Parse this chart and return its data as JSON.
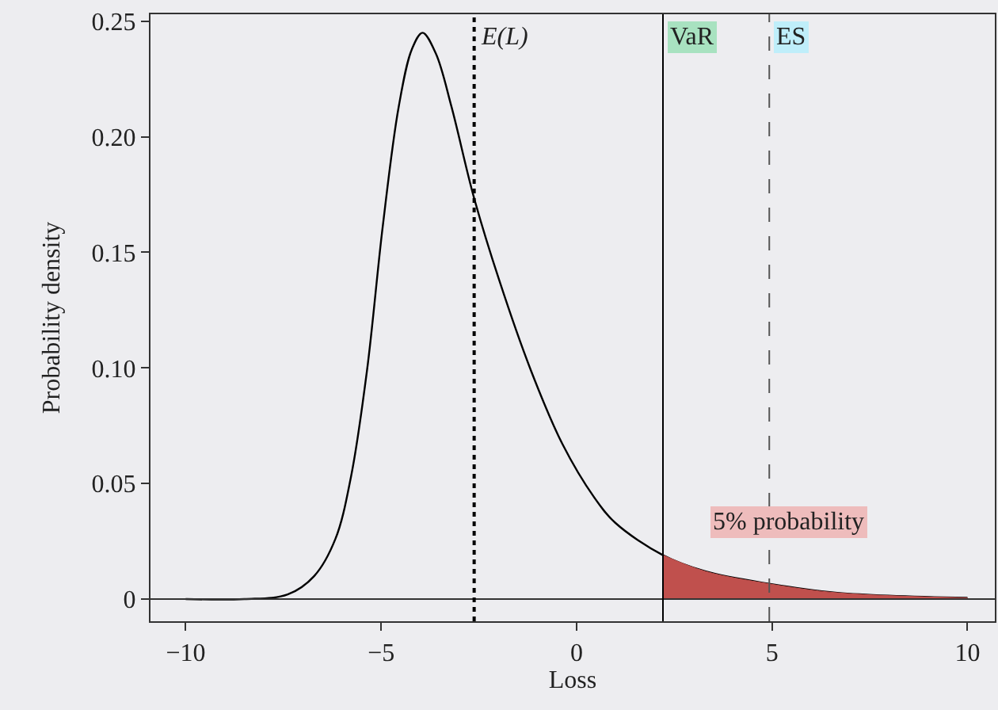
{
  "chart_data": {
    "type": "line",
    "xlabel": "Loss",
    "ylabel": "Probability density",
    "series": [
      {
        "color": "#000000",
        "x": [
          -10,
          -8.5,
          -7.39,
          -6.71,
          -6.17,
          -5.77,
          -5.36,
          -4.96,
          -4.55,
          -4.21,
          -3.94,
          -3.6,
          -3.2,
          -2.63,
          -1.98,
          -1.17,
          -0.36,
          0.45,
          0.99,
          2.21,
          3.29,
          4.92,
          6.67,
          10
        ],
        "values": [
          0,
          0,
          0.002,
          0.01,
          0.026,
          0.053,
          0.099,
          0.161,
          0.213,
          0.238,
          0.245,
          0.236,
          0.213,
          0.174,
          0.138,
          0.099,
          0.067,
          0.044,
          0.033,
          0.019,
          0.012,
          0.0066,
          0.0027,
          0.0005
        ]
      },
      {
        "type": "area",
        "color": "#c0504d",
        "x": [
          2.21,
          3.29,
          4.92,
          6.67,
          10
        ],
        "values": [
          0.019,
          0.012,
          0.0066,
          0.0027,
          0.0005
        ]
      }
    ],
    "xlim": [
      -10.9,
      10.7
    ],
    "ylim": [
      -0.0096,
      0.253
    ],
    "xticks": [
      {
        "value": -10,
        "label": "−10"
      },
      {
        "value": -5,
        "label": "−5"
      },
      0,
      5,
      10
    ],
    "yticks": [
      0,
      0.05,
      {
        "value": 0.1,
        "label": "0.10"
      },
      0.15,
      {
        "value": 0.2,
        "label": "0.20"
      },
      0.25
    ],
    "ref_lines": [
      {
        "axis": "y",
        "value": 0,
        "color": "#333333",
        "line_style": "solid"
      },
      {
        "axis": "x",
        "value": -2.62,
        "label": "E(L)",
        "color": "#000000",
        "line_style": "dotted"
      },
      {
        "axis": "x",
        "value": 2.21,
        "label": "VaR",
        "color": "#000000",
        "line_style": "solid"
      },
      {
        "axis": "x",
        "value": 4.93,
        "label": "ES",
        "color": "#555555",
        "line_style": "dashed"
      }
    ],
    "annotations": [
      "5% probability"
    ],
    "grid": false
  }
}
